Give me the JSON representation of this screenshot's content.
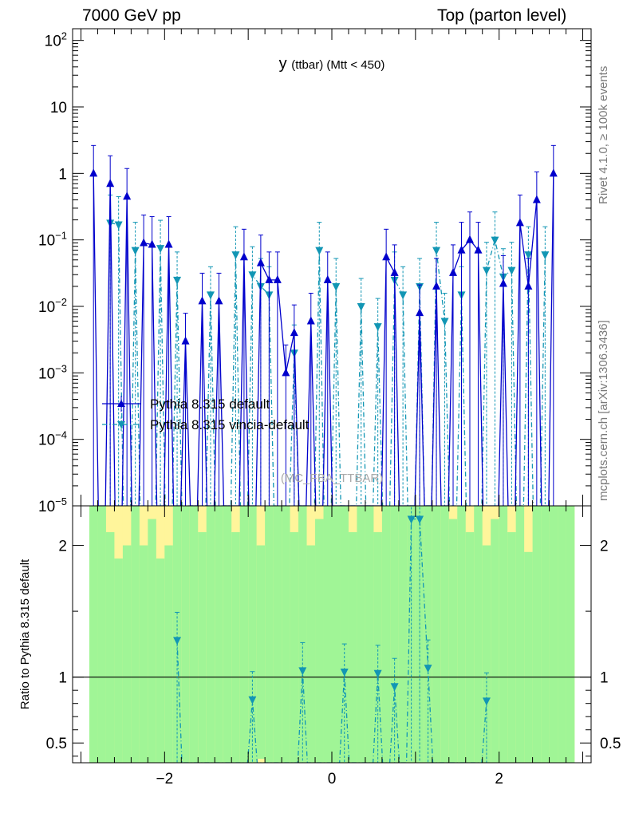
{
  "header": {
    "left": "7000 GeV pp",
    "right": "Top (parton level)"
  },
  "side_labels": {
    "rivet": "Rivet 4.1.0, ≥ 100k events",
    "mcplots": "mcplots.cern.ch [arXiv:1306.3436]"
  },
  "colors": {
    "default": "#0000cc",
    "vincia": "#1296b4",
    "band_inner": "#a0f596",
    "band_outer": "#fff59b"
  },
  "chart_data": [
    {
      "type": "line",
      "title": "y (ttbar) (Mtt < 450)",
      "title_main": "y",
      "title_sub": "(ttbar) (Mtt < 450)",
      "watermark": "(MC_FBA_TTBAR)",
      "xlim": [
        -3.1,
        3.1
      ],
      "ylog": true,
      "ylim": [
        1e-05,
        150
      ],
      "ytick_labels": [
        "10^-5",
        "10^-4",
        "10^-3",
        "10^-2",
        "10^-1",
        "1",
        "10",
        "10^2"
      ],
      "legend": [
        "Pythia 8.315 default",
        "Pythia 8.315 vincia-default"
      ],
      "series": [
        {
          "name": "Pythia 8.315 default",
          "x": [
            -2.85,
            -2.65,
            -2.45,
            -2.25,
            -2.15,
            -1.95,
            -1.75,
            -1.55,
            -1.35,
            -1.05,
            -0.85,
            -0.75,
            -0.65,
            -0.55,
            -0.45,
            -0.25,
            -0.05,
            0.65,
            0.75,
            1.05,
            1.25,
            1.45,
            1.55,
            1.65,
            1.75,
            2.05,
            2.25,
            2.35,
            2.45,
            2.65
          ],
          "values": [
            1.0,
            0.7,
            0.45,
            0.09,
            0.085,
            0.085,
            0.003,
            0.012,
            0.012,
            0.055,
            0.045,
            0.025,
            0.025,
            0.001,
            0.004,
            0.006,
            0.025,
            0.055,
            0.032,
            0.008,
            0.02,
            0.032,
            0.07,
            0.1,
            0.07,
            0.022,
            0.18,
            0.02,
            0.4,
            1.0
          ]
        },
        {
          "name": "Pythia 8.315 vincia-default",
          "x": [
            -2.65,
            -2.55,
            -2.35,
            -2.05,
            -1.85,
            -1.45,
            -1.15,
            -0.95,
            -0.85,
            -0.75,
            -0.45,
            -0.15,
            0.05,
            0.35,
            0.55,
            0.75,
            0.85,
            1.05,
            1.25,
            1.35,
            1.55,
            1.85,
            1.95,
            2.05,
            2.15,
            2.35,
            2.55
          ],
          "values": [
            0.18,
            0.17,
            0.07,
            0.075,
            0.025,
            0.015,
            0.06,
            0.03,
            0.02,
            0.015,
            0.002,
            0.07,
            0.02,
            0.01,
            0.005,
            0.025,
            0.015,
            0.02,
            0.07,
            0.006,
            0.015,
            0.035,
            0.1,
            0.028,
            0.035,
            0.06,
            0.06
          ]
        }
      ]
    },
    {
      "type": "line",
      "ylabel": "Ratio to Pythia 8.315 default",
      "xlim": [
        -3.1,
        3.1
      ],
      "ylim": [
        0.35,
        2.3
      ],
      "yticks": [
        0.5,
        1,
        2
      ],
      "ytick_labels": [
        "0.5",
        "1",
        "2"
      ],
      "xticks": [
        -2,
        0,
        2
      ],
      "xtick_labels": [
        "−2",
        "0",
        "2"
      ],
      "reference_line": 1,
      "bands": {
        "x_low": [
          -2.9,
          -2.8,
          -2.7,
          -2.6,
          -2.5,
          -2.4,
          -2.3,
          -2.2,
          -2.1,
          -2.0,
          -1.9,
          -1.8,
          -1.7,
          -1.6,
          -1.5,
          -1.4,
          -1.3,
          -1.2,
          -1.1,
          -1.0,
          -0.9,
          -0.8,
          -0.7,
          -0.6,
          -0.5,
          -0.4,
          -0.3,
          -0.2,
          -0.1,
          0.0,
          0.1,
          0.2,
          0.3,
          0.4,
          0.5,
          0.6,
          0.7,
          0.8,
          0.9,
          1.0,
          1.1,
          1.2,
          1.3,
          1.4,
          1.5,
          1.6,
          1.7,
          1.8,
          1.9,
          2.0,
          2.1,
          2.2,
          2.3,
          2.4,
          2.5,
          2.6,
          2.7,
          2.8
        ],
        "inner_lo": [
          0.3,
          0.3,
          0.3,
          0.3,
          0.3,
          0.3,
          0.3,
          0.3,
          0.3,
          0.3,
          0.3,
          0.3,
          0.3,
          0.3,
          0.3,
          0.3,
          0.3,
          0.3,
          0.3,
          0.3,
          0.38,
          0.3,
          0.3,
          0.3,
          0.3,
          0.3,
          0.3,
          0.3,
          0.3,
          0.3,
          0.3,
          0.3,
          0.3,
          0.3,
          0.3,
          0.3,
          0.3,
          0.3,
          0.3,
          0.3,
          0.3,
          0.3,
          0.3,
          0.3,
          0.3,
          0.3,
          0.3,
          0.3,
          0.3,
          0.3,
          0.3,
          0.3,
          0.3,
          0.3,
          0.3,
          0.3,
          0.3,
          0.3
        ],
        "inner_hi": [
          2.3,
          2.3,
          2.1,
          1.9,
          2.0,
          2.3,
          2.0,
          2.2,
          1.9,
          2.0,
          2.3,
          2.3,
          2.3,
          2.1,
          2.3,
          2.3,
          2.3,
          2.1,
          2.3,
          2.3,
          2.0,
          2.3,
          2.3,
          2.3,
          2.1,
          2.3,
          2.0,
          2.2,
          2.3,
          2.3,
          2.3,
          2.1,
          2.3,
          2.3,
          2.1,
          2.3,
          2.3,
          2.3,
          2.3,
          2.3,
          2.3,
          2.3,
          2.3,
          2.2,
          2.3,
          2.1,
          2.3,
          2.0,
          2.2,
          2.3,
          2.1,
          2.3,
          1.95,
          2.3,
          2.3,
          2.3,
          2.3,
          2.3
        ],
        "outer_lo": [
          0.3,
          0.3,
          0.3,
          0.3,
          0.3,
          0.3,
          0.3,
          0.3,
          0.3,
          0.38,
          0.3,
          0.3,
          0.3,
          0.3,
          0.3,
          0.3,
          0.3,
          0.3,
          0.3,
          0.3,
          0.3,
          0.3,
          0.3,
          0.3,
          0.3,
          0.3,
          0.3,
          0.3,
          0.3,
          0.3,
          0.3,
          0.3,
          0.3,
          0.3,
          0.3,
          0.38,
          0.3,
          0.3,
          0.3,
          0.3,
          0.3,
          0.3,
          0.3,
          0.3,
          0.3,
          0.3,
          0.3,
          0.3,
          0.3,
          0.3,
          0.3,
          0.3,
          0.3,
          0.3,
          0.3,
          0.3,
          0.3,
          0.3
        ],
        "outer_hi": [
          2.3,
          2.3,
          2.3,
          2.3,
          2.3,
          2.3,
          2.3,
          2.3,
          2.3,
          2.3,
          2.3,
          2.3,
          2.3,
          2.3,
          2.3,
          2.3,
          2.3,
          2.3,
          2.3,
          2.3,
          2.3,
          2.3,
          2.3,
          2.3,
          2.3,
          2.3,
          2.3,
          2.3,
          2.3,
          2.3,
          2.3,
          2.3,
          2.3,
          2.3,
          2.3,
          2.3,
          2.3,
          2.3,
          2.3,
          2.3,
          2.3,
          2.3,
          2.3,
          2.3,
          2.3,
          2.3,
          2.3,
          2.3,
          2.3,
          2.3,
          2.3,
          2.3,
          2.3,
          2.3,
          2.3,
          2.3,
          2.3,
          2.3
        ]
      },
      "series": [
        {
          "name": "Pythia 8.315 vincia-default",
          "x": [
            -1.85,
            -0.95,
            -0.35,
            0.15,
            0.55,
            0.75,
            0.95,
            1.05,
            1.15,
            1.85
          ],
          "values": [
            1.28,
            0.83,
            1.05,
            1.04,
            1.03,
            0.93,
            2.2,
            2.2,
            1.07,
            0.82
          ]
        }
      ]
    }
  ]
}
